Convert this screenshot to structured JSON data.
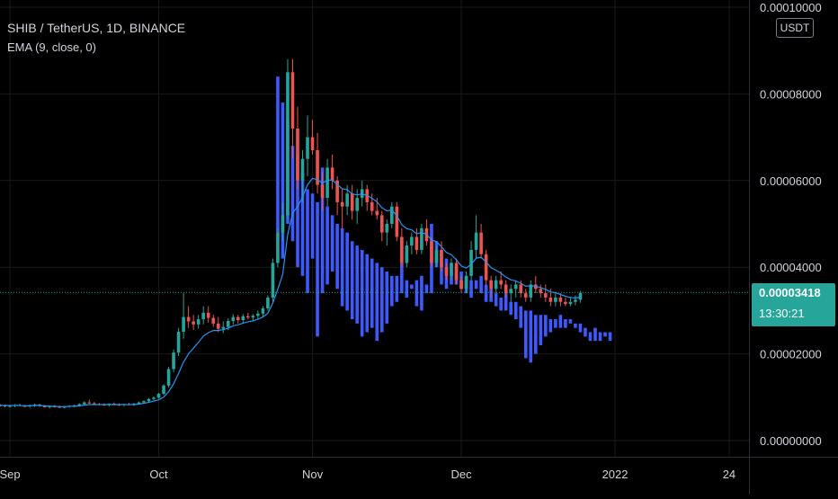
{
  "legend": {
    "symbol": "SHIB / TetherUS, 1D, BINANCE",
    "indicator": "EMA (9, close, 0)"
  },
  "currency": "USDT",
  "last_price": {
    "value": "0.00003418",
    "countdown": "13:30:21"
  },
  "colors": {
    "up": "#26a69a",
    "down": "#ef5350",
    "ema": "#2196f3",
    "projection": "#3d5afe",
    "grid": "#1a1a1a",
    "axis_text": "#d1d4dc",
    "price_tag": "#26a69a"
  },
  "chart_data": {
    "type": "candlestick",
    "y_axis": {
      "range": [
        0,
        0.0001
      ],
      "ticks": [
        {
          "value": 0.0001,
          "label": "0.00010000"
        },
        {
          "value": 8e-05,
          "label": "0.00008000"
        },
        {
          "value": 6e-05,
          "label": "0.00006000"
        },
        {
          "value": 4e-05,
          "label": "0.00004000"
        },
        {
          "value": 2e-05,
          "label": "0.00002000"
        },
        {
          "value": 0,
          "label": "0.00000000"
        }
      ]
    },
    "x_axis": {
      "range": [
        "2021-08-30",
        "2022-01-28"
      ],
      "ticks": [
        {
          "date": "2021-09-01",
          "label": "Sep"
        },
        {
          "date": "2021-10-01",
          "label": "Oct"
        },
        {
          "date": "2021-11-01",
          "label": "Nov"
        },
        {
          "date": "2021-12-01",
          "label": "Dec"
        },
        {
          "date": "2022-01-01",
          "label": "2022"
        },
        {
          "date": "2022-01-24",
          "label": "24"
        }
      ]
    },
    "grid": true,
    "last_price": 3.418e-05,
    "candles": {
      "start": "2021-08-30",
      "ohlc": [
        [
          8.3e-06,
          8.5e-06,
          7.8e-06,
          8.1e-06
        ],
        [
          8.1e-06,
          8.3e-06,
          7.7e-06,
          7.9e-06
        ],
        [
          7.9e-06,
          8.2e-06,
          7.6e-06,
          8e-06
        ],
        [
          8e-06,
          8.4e-06,
          7.7e-06,
          8.2e-06
        ],
        [
          8.2e-06,
          8.5e-06,
          7.9e-06,
          8e-06
        ],
        [
          8e-06,
          8.2e-06,
          7.7e-06,
          7.9e-06
        ],
        [
          7.9e-06,
          8.3e-06,
          7.6e-06,
          8.1e-06
        ],
        [
          8.1e-06,
          8.5e-06,
          7.8e-06,
          8.3e-06
        ],
        [
          8.3e-06,
          8.5e-06,
          7.8e-06,
          8e-06
        ],
        [
          8e-06,
          8.2e-06,
          7.6e-06,
          7.7e-06
        ],
        [
          7.7e-06,
          8.1e-06,
          7.4e-06,
          7.9e-06
        ],
        [
          7.9e-06,
          8.2e-06,
          7.6e-06,
          7.8e-06
        ],
        [
          7.8e-06,
          8.1e-06,
          7.5e-06,
          7.7e-06
        ],
        [
          7.7e-06,
          8e-06,
          7.4e-06,
          7.8e-06
        ],
        [
          7.8e-06,
          8.2e-06,
          7.6e-06,
          8e-06
        ],
        [
          8e-06,
          8.3e-06,
          7.7e-06,
          8.1e-06
        ],
        [
          8.1e-06,
          8.6e-06,
          7.8e-06,
          8.4e-06
        ],
        [
          8.4e-06,
          9e-06,
          8.1e-06,
          8.8e-06
        ],
        [
          8.8e-06,
          9.4e-06,
          8.5e-06,
          8.6e-06
        ],
        [
          8.6e-06,
          8.9e-06,
          8.2e-06,
          8.4e-06
        ],
        [
          8.4e-06,
          8.7e-06,
          8.1e-06,
          8.3e-06
        ],
        [
          8.3e-06,
          8.6e-06,
          8e-06,
          8.2e-06
        ],
        [
          8.2e-06,
          8.6e-06,
          7.9e-06,
          8.5e-06
        ],
        [
          8.5e-06,
          8.8e-06,
          8.1e-06,
          8.3e-06
        ],
        [
          8.3e-06,
          8.6e-06,
          8e-06,
          8.2e-06
        ],
        [
          8.2e-06,
          8.5e-06,
          7.9e-06,
          8.4e-06
        ],
        [
          8.4e-06,
          8.7e-06,
          8.1e-06,
          8.3e-06
        ],
        [
          8.3e-06,
          8.7e-06,
          8e-06,
          8.5e-06
        ],
        [
          8.5e-06,
          9e-06,
          8.3e-06,
          8.8e-06
        ],
        [
          8.8e-06,
          9.3e-06,
          8.5e-06,
          9.1e-06
        ],
        [
          9.1e-06,
          9.8e-06,
          8.8e-06,
          9.6e-06
        ],
        [
          9.6e-06,
          1.02e-05,
          9.3e-06,
          9.9e-06
        ],
        [
          9.9e-06,
          1.1e-05,
          9.7e-06,
          1.08e-05
        ],
        [
          1.08e-05,
          1.3e-05,
          1.05e-05,
          1.27e-05
        ],
        [
          1.27e-05,
          1.7e-05,
          1.22e-05,
          1.65e-05
        ],
        [
          1.65e-05,
          2.1e-05,
          1.58e-05,
          2.03e-05
        ],
        [
          2.03e-05,
          2.6e-05,
          1.95e-05,
          2.51e-05
        ],
        [
          2.51e-05,
          3.4e-05,
          2.35e-05,
          2.85e-05
        ],
        [
          2.85e-05,
          3.1e-05,
          2.6e-05,
          2.75e-05
        ],
        [
          2.75e-05,
          2.9e-05,
          2.55e-05,
          2.68e-05
        ],
        [
          2.68e-05,
          2.9e-05,
          2.58e-05,
          2.8e-05
        ],
        [
          2.8e-05,
          3.1e-05,
          2.68e-05,
          2.95e-05
        ],
        [
          2.95e-05,
          3.1e-05,
          2.72e-05,
          2.83e-05
        ],
        [
          2.83e-05,
          2.9e-05,
          2.62e-05,
          2.7e-05
        ],
        [
          2.7e-05,
          2.85e-05,
          2.5e-05,
          2.58e-05
        ],
        [
          2.58e-05,
          2.75e-05,
          2.48e-05,
          2.62e-05
        ],
        [
          2.62e-05,
          2.82e-05,
          2.55e-05,
          2.76e-05
        ],
        [
          2.76e-05,
          2.92e-05,
          2.68e-05,
          2.85e-05
        ],
        [
          2.85e-05,
          2.9e-05,
          2.7e-05,
          2.78e-05
        ],
        [
          2.78e-05,
          2.92e-05,
          2.7e-05,
          2.87e-05
        ],
        [
          2.87e-05,
          2.95e-05,
          2.8e-05,
          2.84e-05
        ],
        [
          2.84e-05,
          2.92e-05,
          2.76e-05,
          2.88e-05
        ],
        [
          2.88e-05,
          3e-05,
          2.8e-05,
          2.93e-05
        ],
        [
          2.93e-05,
          3.1e-05,
          2.85e-05,
          3.05e-05
        ],
        [
          3.05e-05,
          3.35e-05,
          3e-05,
          3.3e-05
        ],
        [
          3.3e-05,
          4.2e-05,
          3.2e-05,
          4.1e-05
        ],
        [
          4.1e-05,
          4.9e-05,
          4e-05,
          4.8e-05
        ],
        [
          4.8e-05,
          5.5e-05,
          4.6e-05,
          5.2e-05
        ],
        [
          5.2e-05,
          8.8e-05,
          5.1e-05,
          8.5e-05
        ],
        [
          8.5e-05,
          8.8e-05,
          6.5e-05,
          7.2e-05
        ],
        [
          7.2e-05,
          7.7e-05,
          5.8e-05,
          6e-05
        ],
        [
          6e-05,
          6.7e-05,
          5.5e-05,
          6.5e-05
        ],
        [
          6.5e-05,
          7.5e-05,
          6.1e-05,
          7e-05
        ],
        [
          7e-05,
          7.4e-05,
          6.6e-05,
          6.7e-05
        ],
        [
          6.7e-05,
          7.1e-05,
          5.7e-05,
          5.9e-05
        ],
        [
          5.9e-05,
          6.2e-05,
          5.3e-05,
          5.6e-05
        ],
        [
          5.6e-05,
          6.5e-05,
          5.4e-05,
          6.3e-05
        ],
        [
          6.3e-05,
          6.6e-05,
          5.8e-05,
          6e-05
        ],
        [
          6e-05,
          6.1e-05,
          5.2e-05,
          5.5e-05
        ],
        [
          5.5e-05,
          5.8e-05,
          4.9e-05,
          5.4e-05
        ],
        [
          5.4e-05,
          5.9e-05,
          5.2e-05,
          5.7e-05
        ],
        [
          5.7e-05,
          5.9e-05,
          5.1e-05,
          5.3e-05
        ],
        [
          5.3e-05,
          5.8e-05,
          5e-05,
          5.6e-05
        ],
        [
          5.6e-05,
          6e-05,
          5.4e-05,
          5.8e-05
        ],
        [
          5.8e-05,
          5.9e-05,
          5.3e-05,
          5.5e-05
        ],
        [
          5.5e-05,
          5.7e-05,
          5.2e-05,
          5.3e-05
        ],
        [
          5.3e-05,
          5.6e-05,
          5.1e-05,
          5.2e-05
        ],
        [
          5.2e-05,
          5.3e-05,
          4.6e-05,
          4.8e-05
        ],
        [
          4.8e-05,
          5.1e-05,
          4.5e-05,
          5e-05
        ],
        [
          5e-05,
          5.5e-05,
          4.9e-05,
          5.4e-05
        ],
        [
          5.4e-05,
          5.5e-05,
          4.6e-05,
          4.7e-05
        ],
        [
          4.7e-05,
          4.9e-05,
          4e-05,
          4.1e-05
        ],
        [
          4.1e-05,
          4.6e-05,
          4e-05,
          4.5e-05
        ],
        [
          4.5e-05,
          4.8e-05,
          4.3e-05,
          4.7e-05
        ],
        [
          4.7e-05,
          4.9e-05,
          4.3e-05,
          4.4e-05
        ],
        [
          4.4e-05,
          5e-05,
          4.3e-05,
          4.9e-05
        ],
        [
          4.9e-05,
          5.1e-05,
          4.5e-05,
          4.6e-05
        ],
        [
          4.6e-05,
          4.7e-05,
          4e-05,
          4.1e-05
        ],
        [
          4.1e-05,
          4.5e-05,
          4e-05,
          4.4e-05
        ],
        [
          4.4e-05,
          4.6e-05,
          3.9e-05,
          4e-05
        ],
        [
          4e-05,
          4.1e-05,
          3.7e-05,
          3.8e-05
        ],
        [
          3.8e-05,
          4.2e-05,
          3.7e-05,
          4.1e-05
        ],
        [
          4.1e-05,
          4.2e-05,
          3.6e-05,
          3.7e-05
        ],
        [
          3.7e-05,
          3.8e-05,
          3.4e-05,
          3.5e-05
        ],
        [
          3.5e-05,
          3.9e-05,
          3.4e-05,
          3.8e-05
        ],
        [
          3.8e-05,
          4.6e-05,
          3.7e-05,
          4.4e-05
        ],
        [
          4.4e-05,
          5.2e-05,
          4.2e-05,
          4.8e-05
        ],
        [
          4.8e-05,
          5e-05,
          4.2e-05,
          4.3e-05
        ],
        [
          4.3e-05,
          4.4e-05,
          3.6e-05,
          3.7e-05
        ],
        [
          3.7e-05,
          3.8e-05,
          3.3e-05,
          3.5e-05
        ],
        [
          3.5e-05,
          3.8e-05,
          3.4e-05,
          3.7e-05
        ],
        [
          3.7e-05,
          3.9e-05,
          3.5e-05,
          3.6e-05
        ],
        [
          3.6e-05,
          3.7e-05,
          3.3e-05,
          3.4e-05
        ],
        [
          3.4e-05,
          3.6e-05,
          3.2e-05,
          3.5e-05
        ],
        [
          3.5e-05,
          3.7e-05,
          3.3e-05,
          3.6e-05
        ],
        [
          3.6e-05,
          3.7e-05,
          3.3e-05,
          3.4e-05
        ],
        [
          3.4e-05,
          3.5e-05,
          3.2e-05,
          3.3e-05
        ],
        [
          3.3e-05,
          3.7e-05,
          3.2e-05,
          3.6e-05
        ],
        [
          3.6e-05,
          3.8e-05,
          3.4e-05,
          3.5e-05
        ],
        [
          3.5e-05,
          3.6e-05,
          3.3e-05,
          3.4e-05
        ],
        [
          3.4e-05,
          3.6e-05,
          3.2e-05,
          3.3e-05
        ],
        [
          3.3e-05,
          3.5e-05,
          3.1e-05,
          3.2e-05
        ],
        [
          3.2e-05,
          3.4e-05,
          3.1e-05,
          3.3e-05
        ],
        [
          3.3e-05,
          3.4e-05,
          3.1e-05,
          3.2e-05
        ],
        [
          3.2e-05,
          3.3e-05,
          3.1e-05,
          3.15e-05
        ],
        [
          3.15e-05,
          3.3e-05,
          3.1e-05,
          3.2e-05
        ],
        [
          3.2e-05,
          3.35e-05,
          3.12e-05,
          3.25e-05
        ],
        [
          3.25e-05,
          3.45e-05,
          3.18e-05,
          3.41e-05
        ]
      ]
    },
    "ema_series": {
      "name": "EMA (9, close, 0)",
      "start": "2021-08-30",
      "values": [
        8.1e-06,
        8.1e-06,
        8.1e-06,
        8.1e-06,
        8.1e-06,
        8e-06,
        8e-06,
        8.1e-06,
        8.1e-06,
        8e-06,
        7.9e-06,
        7.9e-06,
        7.8e-06,
        7.8e-06,
        7.9e-06,
        7.9e-06,
        8e-06,
        8.2e-06,
        8.3e-06,
        8.3e-06,
        8.3e-06,
        8.3e-06,
        8.3e-06,
        8.3e-06,
        8.3e-06,
        8.3e-06,
        8.3e-06,
        8.3e-06,
        8.4e-06,
        8.6e-06,
        8.8e-06,
        9.1e-06,
        9.4e-06,
        1e-05,
        1.13e-05,
        1.31e-05,
        1.55e-05,
        1.81e-05,
        2e-05,
        2.13e-05,
        2.27e-05,
        2.41e-05,
        2.49e-05,
        2.54e-05,
        2.54e-05,
        2.56e-05,
        2.59e-05,
        2.65e-05,
        2.67e-05,
        2.71e-05,
        2.74e-05,
        2.76e-05,
        2.8e-05,
        2.85e-05,
        2.94e-05,
        3.17e-05,
        3.49e-05,
        3.83e-05,
        4.76e-05,
        5.25e-05,
        5.4e-05,
        5.62e-05,
        5.9e-05,
        6.05e-05,
        6.02e-05,
        5.94e-05,
        6.01e-05,
        6.01e-05,
        5.91e-05,
        5.81e-05,
        5.79e-05,
        5.69e-05,
        5.67e-05,
        5.69e-05,
        5.66e-05,
        5.59e-05,
        5.51e-05,
        5.37e-05,
        5.3e-05,
        5.32e-05,
        5.19e-05,
        4.98e-05,
        4.89e-05,
        4.86e-05,
        4.77e-05,
        4.8e-05,
        4.76e-05,
        4.63e-05,
        4.59e-05,
        4.47e-05,
        4.34e-05,
        4.29e-05,
        4.17e-05,
        4.03e-05,
        3.98e-05,
        4.07e-05,
        4.21e-05,
        4.23e-05,
        4.12e-05,
        3.99e-05,
        3.93e-05,
        3.86e-05,
        3.77e-05,
        3.71e-05,
        3.68e-05,
        3.63e-05,
        3.56e-05,
        3.57e-05,
        3.56e-05,
        3.53e-05,
        3.49e-05,
        3.43e-05,
        3.41e-05,
        3.37e-05,
        3.33e-05,
        3.3e-05,
        3.29e-05,
        3.31e-05
      ]
    },
    "projection_bars": {
      "start": "2021-10-25",
      "bars": [
        [
          8.4e-05,
          4.8e-05
        ],
        [
          7.8e-05,
          4.2e-05
        ],
        [
          7.4e-05,
          5e-05
        ],
        [
          6.8e-05,
          4.6e-05
        ],
        [
          6.6e-05,
          4e-05
        ],
        [
          6.2e-05,
          3.8e-05
        ],
        [
          5.8e-05,
          3.4e-05
        ],
        [
          5.7e-05,
          4.2e-05
        ],
        [
          5.5e-05,
          2.4e-05
        ],
        [
          6.3e-05,
          3.4e-05
        ],
        [
          5.4e-05,
          3.6e-05
        ],
        [
          5.2e-05,
          3.9e-05
        ],
        [
          5e-05,
          3.5e-05
        ],
        [
          4.9e-05,
          3.1e-05
        ],
        [
          4.8e-05,
          3e-05
        ],
        [
          4.6e-05,
          2.8e-05
        ],
        [
          4.5e-05,
          2.7e-05
        ],
        [
          4.4e-05,
          2.4e-05
        ],
        [
          4.3e-05,
          2.5e-05
        ],
        [
          4.2e-05,
          2.6e-05
        ],
        [
          4.1e-05,
          2.3e-05
        ],
        [
          4e-05,
          2.5e-05
        ],
        [
          3.9e-05,
          2.7e-05
        ],
        [
          3.8e-05,
          3.1e-05
        ],
        [
          3.8e-05,
          3.2e-05
        ],
        [
          4.1e-05,
          3.4e-05
        ],
        [
          3.7e-05,
          3.3e-05
        ],
        [
          3.6e-05,
          3.5e-05
        ],
        [
          3.7e-05,
          3.1e-05
        ],
        [
          3.8e-05,
          3e-05
        ],
        [
          3.6e-05,
          3.4e-05
        ],
        [
          5e-05,
          3.4e-05
        ],
        [
          4.6e-05,
          4e-05
        ],
        [
          4.4e-05,
          3.6e-05
        ],
        [
          4.2e-05,
          3.5e-05
        ],
        [
          4.1e-05,
          3.6e-05
        ],
        [
          4e-05,
          3.6e-05
        ],
        [
          3.9e-05,
          3.5e-05
        ],
        [
          3.8e-05,
          3.4e-05
        ],
        [
          3.7e-05,
          3.3e-05
        ],
        [
          3.7e-05,
          3.5e-05
        ],
        [
          3.8e-05,
          3.4e-05
        ],
        [
          3.6e-05,
          3.2e-05
        ],
        [
          3.5e-05,
          3.2e-05
        ],
        [
          3.4e-05,
          3.1e-05
        ],
        [
          3.3e-05,
          3e-05
        ],
        [
          3.4e-05,
          3e-05
        ],
        [
          3.2e-05,
          2.9e-05
        ],
        [
          3.2e-05,
          2.8e-05
        ],
        [
          3.1e-05,
          2.6e-05
        ],
        [
          3e-05,
          1.9e-05
        ],
        [
          3e-05,
          1.8e-05
        ],
        [
          2.9e-05,
          2e-05
        ],
        [
          2.9e-05,
          2.2e-05
        ],
        [
          2.9e-05,
          2.4e-05
        ],
        [
          2.8e-05,
          2.5e-05
        ],
        [
          2.8e-05,
          2.6e-05
        ],
        [
          2.9e-05,
          2.6e-05
        ],
        [
          2.8e-05,
          2.6e-05
        ],
        [
          2.8e-05,
          2.7e-05
        ],
        [
          2.7e-05,
          2.6e-05
        ],
        [
          2.7e-05,
          2.5e-05
        ],
        [
          2.6e-05,
          2.4e-05
        ],
        [
          2.5e-05,
          2.3e-05
        ],
        [
          2.6e-05,
          2.3e-05
        ],
        [
          2.5e-05,
          2.3e-05
        ],
        [
          2.5e-05,
          2.4e-05
        ],
        [
          2.5e-05,
          2.3e-05
        ]
      ]
    }
  }
}
